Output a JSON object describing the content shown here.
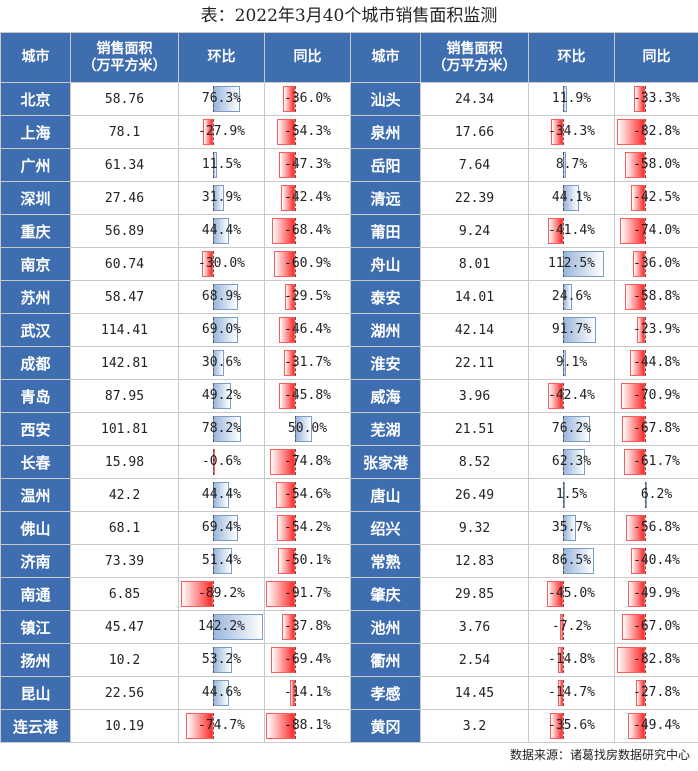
{
  "title": "表：2022年3月40个城市销售面积监测",
  "headers": {
    "city": "城市",
    "area_line1": "销售面积",
    "area_line2": "（万平方米）",
    "mom": "环比",
    "yoy": "同比"
  },
  "left": [
    {
      "city": "北京",
      "area": "58.76",
      "mom": "76.3%",
      "mom_v": 76.3,
      "yoy": "-36.0%",
      "yoy_v": -36.0
    },
    {
      "city": "上海",
      "area": "78.1",
      "mom": "-27.9%",
      "mom_v": -27.9,
      "yoy": "-54.3%",
      "yoy_v": -54.3
    },
    {
      "city": "广州",
      "area": "61.34",
      "mom": "11.5%",
      "mom_v": 11.5,
      "yoy": "-47.3%",
      "yoy_v": -47.3
    },
    {
      "city": "深圳",
      "area": "27.46",
      "mom": "31.9%",
      "mom_v": 31.9,
      "yoy": "-42.4%",
      "yoy_v": -42.4
    },
    {
      "city": "重庆",
      "area": "56.89",
      "mom": "44.4%",
      "mom_v": 44.4,
      "yoy": "-68.4%",
      "yoy_v": -68.4
    },
    {
      "city": "南京",
      "area": "60.74",
      "mom": "-30.0%",
      "mom_v": -30.0,
      "yoy": "-60.9%",
      "yoy_v": -60.9
    },
    {
      "city": "苏州",
      "area": "58.47",
      "mom": "68.9%",
      "mom_v": 68.9,
      "yoy": "-29.5%",
      "yoy_v": -29.5
    },
    {
      "city": "武汉",
      "area": "114.41",
      "mom": "69.0%",
      "mom_v": 69.0,
      "yoy": "-46.4%",
      "yoy_v": -46.4
    },
    {
      "city": "成都",
      "area": "142.81",
      "mom": "30.6%",
      "mom_v": 30.6,
      "yoy": "-31.7%",
      "yoy_v": -31.7
    },
    {
      "city": "青岛",
      "area": "87.95",
      "mom": "49.2%",
      "mom_v": 49.2,
      "yoy": "-45.8%",
      "yoy_v": -45.8
    },
    {
      "city": "西安",
      "area": "101.81",
      "mom": "78.2%",
      "mom_v": 78.2,
      "yoy": "50.0%",
      "yoy_v": 50.0
    },
    {
      "city": "长春",
      "area": "15.98",
      "mom": "-0.6%",
      "mom_v": -0.6,
      "yoy": "-74.8%",
      "yoy_v": -74.8
    },
    {
      "city": "温州",
      "area": "42.2",
      "mom": "44.4%",
      "mom_v": 44.4,
      "yoy": "-54.6%",
      "yoy_v": -54.6
    },
    {
      "city": "佛山",
      "area": "68.1",
      "mom": "69.4%",
      "mom_v": 69.4,
      "yoy": "-54.2%",
      "yoy_v": -54.2
    },
    {
      "city": "济南",
      "area": "73.39",
      "mom": "51.4%",
      "mom_v": 51.4,
      "yoy": "-50.1%",
      "yoy_v": -50.1
    },
    {
      "city": "南通",
      "area": "6.85",
      "mom": "-89.2%",
      "mom_v": -89.2,
      "yoy": "-91.7%",
      "yoy_v": -91.7
    },
    {
      "city": "镇江",
      "area": "45.47",
      "mom": "142.2%",
      "mom_v": 142.2,
      "yoy": "-37.8%",
      "yoy_v": -37.8
    },
    {
      "city": "扬州",
      "area": "10.2",
      "mom": "53.2%",
      "mom_v": 53.2,
      "yoy": "-69.4%",
      "yoy_v": -69.4
    },
    {
      "city": "昆山",
      "area": "22.56",
      "mom": "44.6%",
      "mom_v": 44.6,
      "yoy": "-14.1%",
      "yoy_v": -14.1
    },
    {
      "city": "连云港",
      "area": "10.19",
      "mom": "-74.7%",
      "mom_v": -74.7,
      "yoy": "-88.1%",
      "yoy_v": -88.1
    }
  ],
  "right": [
    {
      "city": "汕头",
      "area": "24.34",
      "mom": "11.9%",
      "mom_v": 11.9,
      "yoy": "-33.3%",
      "yoy_v": -33.3
    },
    {
      "city": "泉州",
      "area": "17.66",
      "mom": "-34.3%",
      "mom_v": -34.3,
      "yoy": "-82.8%",
      "yoy_v": -82.8
    },
    {
      "city": "岳阳",
      "area": "7.64",
      "mom": "8.7%",
      "mom_v": 8.7,
      "yoy": "-58.0%",
      "yoy_v": -58.0
    },
    {
      "city": "清远",
      "area": "22.39",
      "mom": "44.1%",
      "mom_v": 44.1,
      "yoy": "-42.5%",
      "yoy_v": -42.5
    },
    {
      "city": "莆田",
      "area": "9.24",
      "mom": "-41.4%",
      "mom_v": -41.4,
      "yoy": "-74.0%",
      "yoy_v": -74.0
    },
    {
      "city": "舟山",
      "area": "8.01",
      "mom": "112.5%",
      "mom_v": 112.5,
      "yoy": "-36.0%",
      "yoy_v": -36.0
    },
    {
      "city": "泰安",
      "area": "14.01",
      "mom": "24.6%",
      "mom_v": 24.6,
      "yoy": "-58.8%",
      "yoy_v": -58.8
    },
    {
      "city": "湖州",
      "area": "42.14",
      "mom": "91.7%",
      "mom_v": 91.7,
      "yoy": "-23.9%",
      "yoy_v": -23.9
    },
    {
      "city": "淮安",
      "area": "22.11",
      "mom": "9.1%",
      "mom_v": 9.1,
      "yoy": "-44.8%",
      "yoy_v": -44.8
    },
    {
      "city": "威海",
      "area": "3.96",
      "mom": "-42.4%",
      "mom_v": -42.4,
      "yoy": "-70.9%",
      "yoy_v": -70.9
    },
    {
      "city": "芜湖",
      "area": "21.51",
      "mom": "76.2%",
      "mom_v": 76.2,
      "yoy": "-67.8%",
      "yoy_v": -67.8
    },
    {
      "city": "张家港",
      "area": "8.52",
      "mom": "62.3%",
      "mom_v": 62.3,
      "yoy": "-61.7%",
      "yoy_v": -61.7
    },
    {
      "city": "唐山",
      "area": "26.49",
      "mom": "1.5%",
      "mom_v": 1.5,
      "yoy": "6.2%",
      "yoy_v": 6.2
    },
    {
      "city": "绍兴",
      "area": "9.32",
      "mom": "35.7%",
      "mom_v": 35.7,
      "yoy": "-56.8%",
      "yoy_v": -56.8
    },
    {
      "city": "常熟",
      "area": "12.83",
      "mom": "86.5%",
      "mom_v": 86.5,
      "yoy": "-40.4%",
      "yoy_v": -40.4
    },
    {
      "city": "肇庆",
      "area": "29.85",
      "mom": "-45.0%",
      "mom_v": -45.0,
      "yoy": "-49.9%",
      "yoy_v": -49.9
    },
    {
      "city": "池州",
      "area": "3.76",
      "mom": "-7.2%",
      "mom_v": -7.2,
      "yoy": "-67.0%",
      "yoy_v": -67.0
    },
    {
      "city": "衢州",
      "area": "2.54",
      "mom": "-14.8%",
      "mom_v": -14.8,
      "yoy": "-82.8%",
      "yoy_v": -82.8
    },
    {
      "city": "孝感",
      "area": "14.45",
      "mom": "-14.7%",
      "mom_v": -14.7,
      "yoy": "-27.8%",
      "yoy_v": -27.8
    },
    {
      "city": "黄冈",
      "area": "3.2",
      "mom": "-35.6%",
      "mom_v": -35.6,
      "yoy": "-49.4%",
      "yoy_v": -49.4
    }
  ],
  "colors": {
    "header_blue": "#3f6eb0",
    "positive_bar": "#9ab6db",
    "negative_bar": "#ff2a2a"
  },
  "source": "数据来源：诸葛找房数据研究中心"
}
